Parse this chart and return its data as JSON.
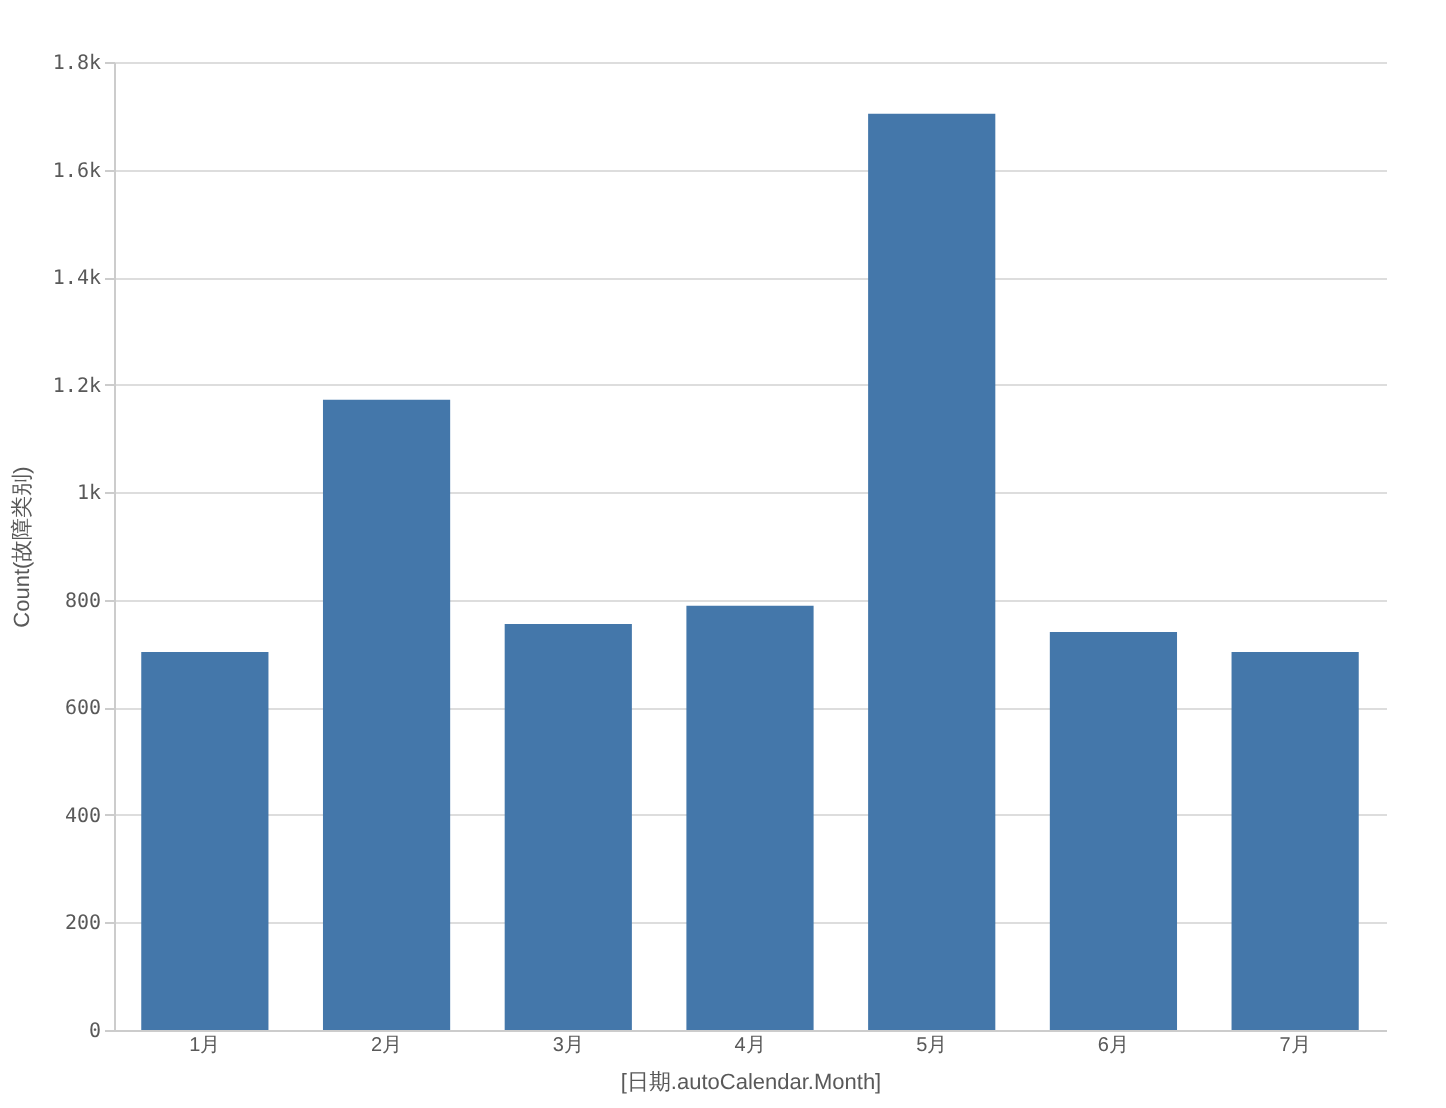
{
  "chart_data": {
    "type": "bar",
    "xlabel": "[日期.autoCalendar.Month]",
    "ylabel": "Count(故障类别)",
    "categories": [
      "1月",
      "2月",
      "3月",
      "4月",
      "5月",
      "6月",
      "7月"
    ],
    "values": [
      703,
      1172,
      755,
      789,
      1704,
      740,
      703
    ],
    "color": "#4477aa",
    "ylim": [
      0,
      1800
    ],
    "yticks": [
      0,
      200,
      400,
      600,
      800,
      {
        "value": 1000,
        "label": "1k"
      },
      {
        "value": 1200,
        "label": "1.2k"
      },
      {
        "value": 1400,
        "label": "1.4k"
      },
      {
        "value": 1600,
        "label": "1.6k"
      },
      {
        "value": 1800,
        "label": "1.8k"
      }
    ],
    "grid": "y"
  }
}
